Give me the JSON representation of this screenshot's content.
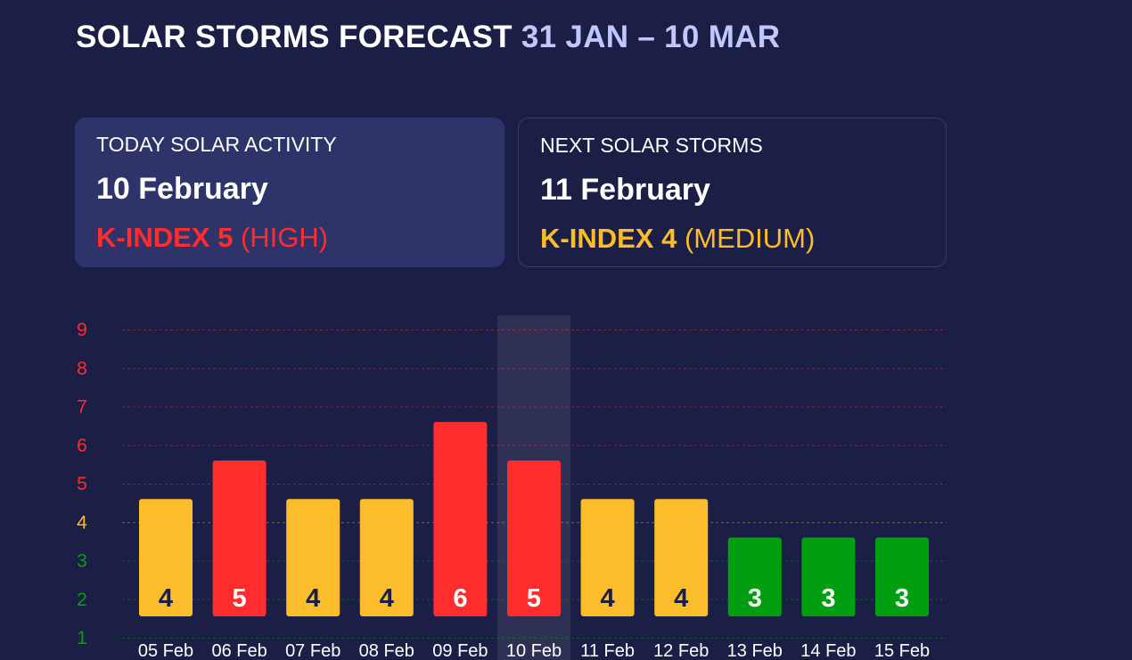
{
  "header": {
    "title": "SOLAR STORMS FORECAST",
    "range": "31 JAN – 10 MAR"
  },
  "today_card": {
    "label": "TODAY SOLAR ACTIVITY",
    "date": "10 February",
    "kindex_label": "K-INDEX 5",
    "level": "(HIGH)"
  },
  "next_card": {
    "label": "NEXT SOLAR STORMS",
    "date": "11 February",
    "kindex_label": "K-INDEX 4",
    "level": "(MEDIUM)"
  },
  "colors": {
    "background": "#1c1f45",
    "high": "#ff2d2d",
    "medium": "#fbbd2c",
    "low": "#009e10",
    "highlight": "#2e3154"
  },
  "chart_data": {
    "type": "bar",
    "categories": [
      "05 Feb",
      "06 Feb",
      "07 Feb",
      "08 Feb",
      "09 Feb",
      "10 Feb",
      "11 Feb",
      "12 Feb",
      "13 Feb",
      "14 Feb",
      "15 Feb"
    ],
    "values": [
      4,
      5,
      4,
      4,
      6,
      5,
      4,
      4,
      3,
      3,
      3
    ],
    "y_ticks": [
      1,
      2,
      3,
      4,
      5,
      6,
      7,
      8,
      9
    ],
    "ylim": [
      1,
      9
    ],
    "highlight_category": "10 Feb",
    "grid": true,
    "level_colors": {
      "low": "#009e10",
      "medium": "#fbbd2c",
      "high": "#ff2d2d"
    }
  }
}
